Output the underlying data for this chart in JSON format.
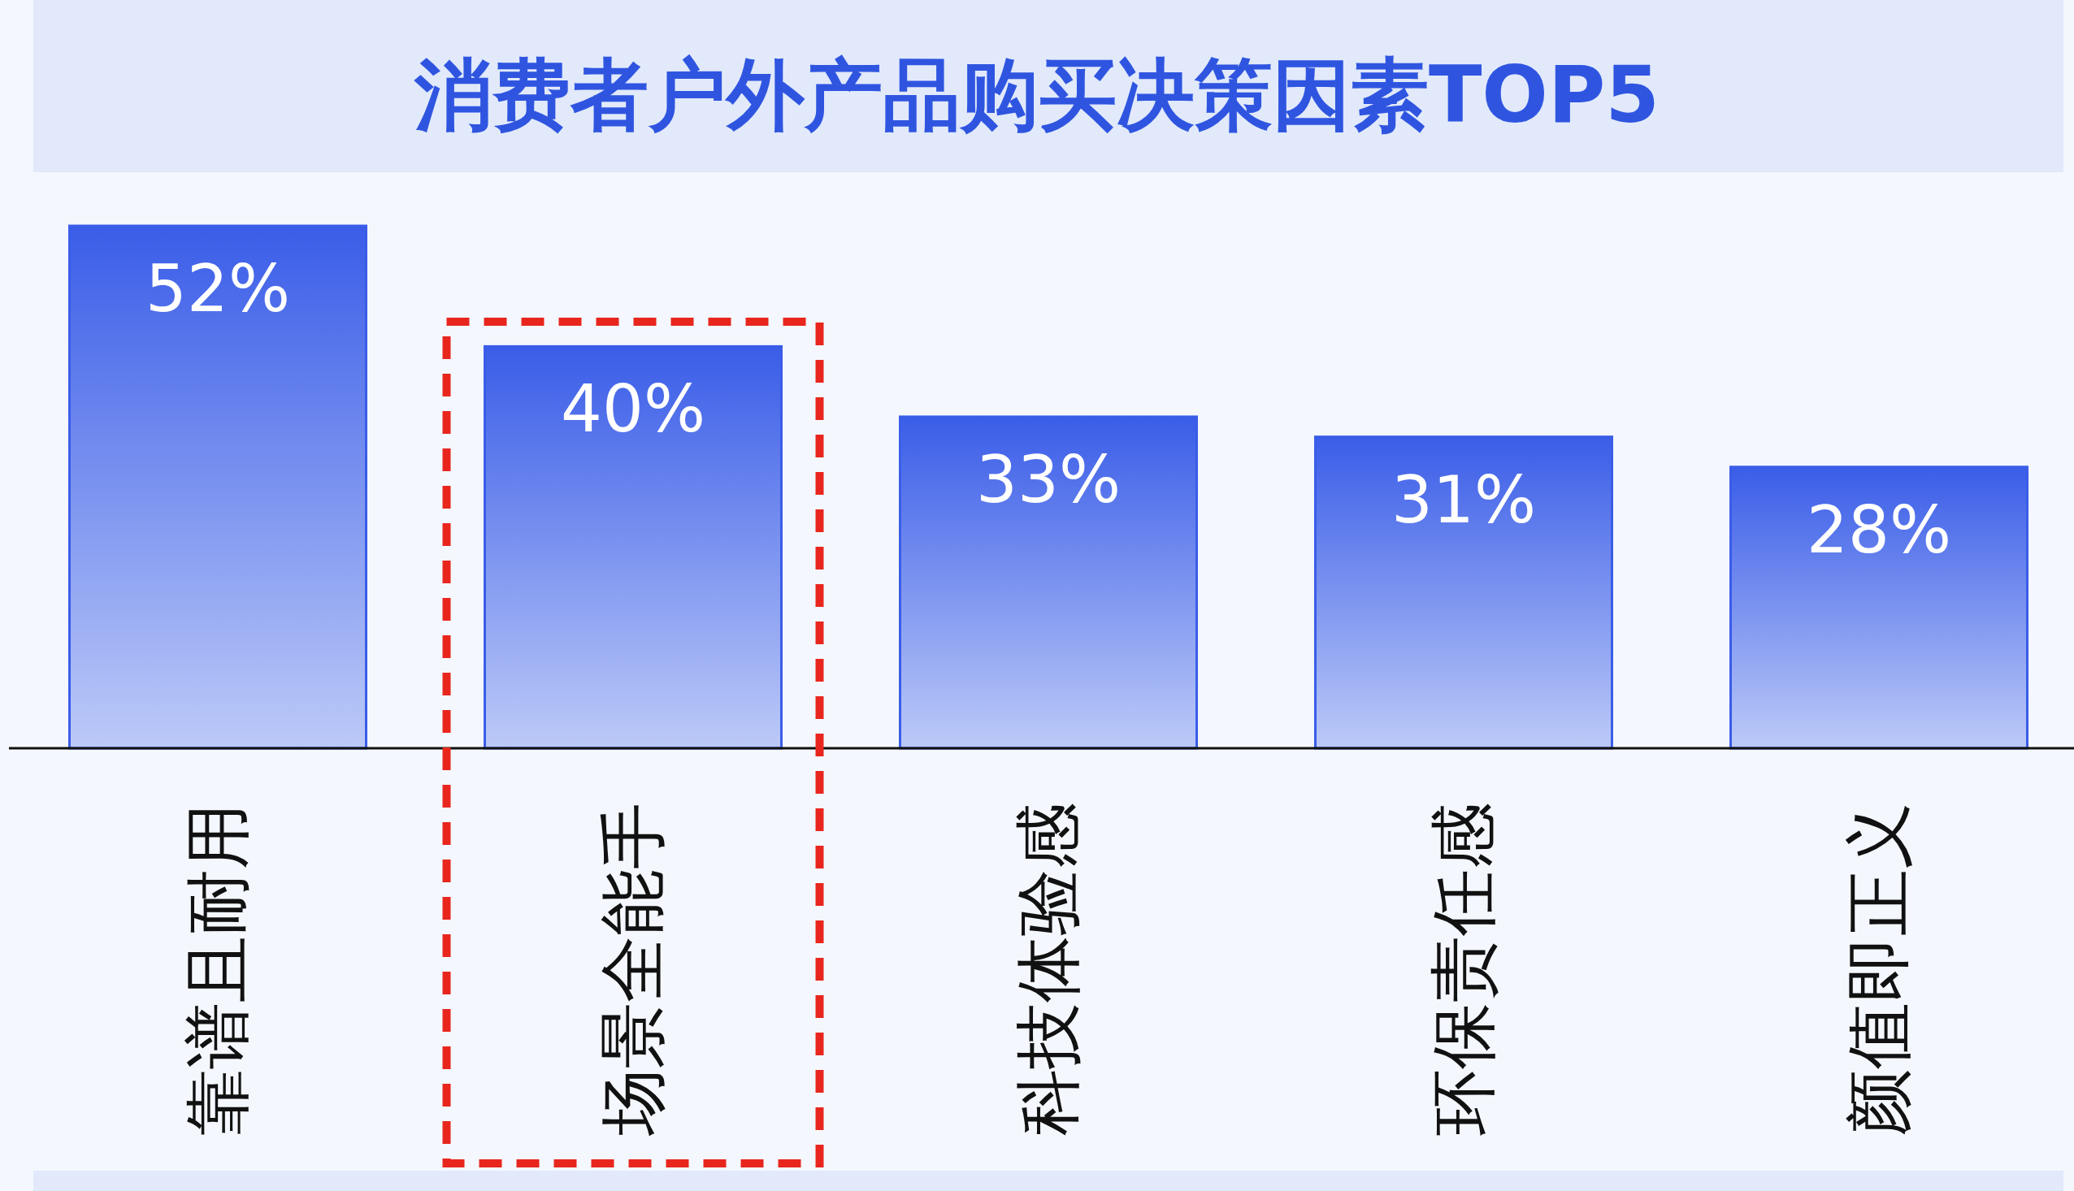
{
  "chart_data": {
    "type": "bar",
    "title": "消费者户外产品购买决策因素TOP5",
    "categories": [
      "靠谱且耐用",
      "场景全能手",
      "科技体验感",
      "环保责任感",
      "颜值即正义"
    ],
    "values": [
      52,
      40,
      33,
      31,
      28
    ],
    "value_labels": [
      "52%",
      "40%",
      "33%",
      "31%",
      "28%"
    ],
    "color": "#3a5de8"
  }
}
